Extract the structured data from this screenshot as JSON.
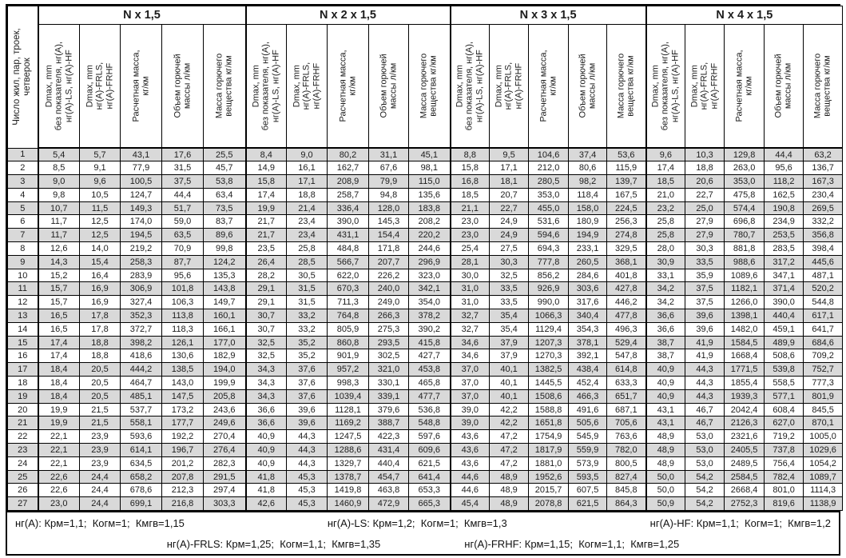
{
  "colors": {
    "row_shade": "#d9d9d9",
    "border": "#000000",
    "background": "#ffffff"
  },
  "table": {
    "corner_header": "Число жил, пар, троек,\nчетверок",
    "groups": [
      "N x 1,5",
      "N x 2 x 1,5",
      "N x 3 x 1,5",
      "N x 4 x 1,5"
    ],
    "column_headers": [
      "Dmax, mm\nбез показателя, нг(A),\nнг(A)-LS, нг(A)-HF",
      "Dmax, mm\nнг(A)-FRLS,\nнг(A)-FRHF",
      "Расчетная масса,\nкг/км",
      "Объем горючей\nмассы л/км",
      "Масса горючего\nвещества кг/км"
    ],
    "rows": [
      {
        "n": "1",
        "values": [
          "5,4",
          "5,7",
          "43,1",
          "17,6",
          "25,5",
          "8,4",
          "9,0",
          "80,2",
          "31,1",
          "45,1",
          "8,8",
          "9,5",
          "104,6",
          "37,4",
          "53,6",
          "9,6",
          "10,3",
          "129,8",
          "44,4",
          "63,2"
        ]
      },
      {
        "n": "2",
        "values": [
          "8,5",
          "9,1",
          "77,9",
          "31,5",
          "45,7",
          "14,9",
          "16,1",
          "162,7",
          "67,6",
          "98,1",
          "15,8",
          "17,1",
          "212,0",
          "80,6",
          "115,9",
          "17,4",
          "18,8",
          "263,0",
          "95,6",
          "136,7"
        ]
      },
      {
        "n": "3",
        "values": [
          "9,0",
          "9,6",
          "100,5",
          "37,5",
          "53,8",
          "15,8",
          "17,1",
          "208,9",
          "79,9",
          "115,0",
          "16,8",
          "18,1",
          "280,5",
          "98,2",
          "139,7",
          "18,5",
          "20,6",
          "353,0",
          "118,2",
          "167,3"
        ]
      },
      {
        "n": "4",
        "values": [
          "9,8",
          "10,5",
          "124,7",
          "44,4",
          "63,4",
          "17,4",
          "18,8",
          "258,7",
          "94,8",
          "135,6",
          "18,5",
          "20,7",
          "353,0",
          "118,4",
          "167,5",
          "21,0",
          "22,7",
          "475,8",
          "162,5",
          "230,4"
        ]
      },
      {
        "n": "5",
        "values": [
          "10,7",
          "11,5",
          "149,3",
          "51,7",
          "73,5",
          "19,9",
          "21,4",
          "336,4",
          "128,0",
          "183,8",
          "21,1",
          "22,7",
          "455,0",
          "158,0",
          "224,5",
          "23,2",
          "25,0",
          "574,4",
          "190,8",
          "269,5"
        ]
      },
      {
        "n": "6",
        "values": [
          "11,7",
          "12,5",
          "174,0",
          "59,0",
          "83,7",
          "21,7",
          "23,4",
          "390,0",
          "145,3",
          "208,2",
          "23,0",
          "24,9",
          "531,6",
          "180,9",
          "256,3",
          "25,8",
          "27,9",
          "696,8",
          "234,9",
          "332,2"
        ]
      },
      {
        "n": "7",
        "values": [
          "11,7",
          "12,5",
          "194,5",
          "63,5",
          "89,6",
          "21,7",
          "23,4",
          "431,1",
          "154,4",
          "220,2",
          "23,0",
          "24,9",
          "594,6",
          "194,9",
          "274,8",
          "25,8",
          "27,9",
          "780,7",
          "253,5",
          "356,8"
        ]
      },
      {
        "n": "8",
        "values": [
          "12,6",
          "14,0",
          "219,2",
          "70,9",
          "99,8",
          "23,5",
          "25,8",
          "484,8",
          "171,8",
          "244,6",
          "25,4",
          "27,5",
          "694,3",
          "233,1",
          "329,5",
          "28,0",
          "30,3",
          "881,8",
          "283,5",
          "398,4"
        ]
      },
      {
        "n": "9",
        "values": [
          "14,3",
          "15,4",
          "258,3",
          "87,7",
          "124,2",
          "26,4",
          "28,5",
          "566,7",
          "207,7",
          "296,9",
          "28,1",
          "30,3",
          "777,8",
          "260,5",
          "368,1",
          "30,9",
          "33,5",
          "988,6",
          "317,2",
          "445,6"
        ]
      },
      {
        "n": "10",
        "values": [
          "15,2",
          "16,4",
          "283,9",
          "95,6",
          "135,3",
          "28,2",
          "30,5",
          "622,0",
          "226,2",
          "323,0",
          "30,0",
          "32,5",
          "856,2",
          "284,6",
          "401,8",
          "33,1",
          "35,9",
          "1089,6",
          "347,1",
          "487,1"
        ]
      },
      {
        "n": "11",
        "values": [
          "15,7",
          "16,9",
          "306,9",
          "101,8",
          "143,8",
          "29,1",
          "31,5",
          "670,3",
          "240,0",
          "342,1",
          "31,0",
          "33,5",
          "926,9",
          "303,6",
          "427,8",
          "34,2",
          "37,5",
          "1182,1",
          "371,4",
          "520,2"
        ]
      },
      {
        "n": "12",
        "values": [
          "15,7",
          "16,9",
          "327,4",
          "106,3",
          "149,7",
          "29,1",
          "31,5",
          "711,3",
          "249,0",
          "354,0",
          "31,0",
          "33,5",
          "990,0",
          "317,6",
          "446,2",
          "34,2",
          "37,5",
          "1266,0",
          "390,0",
          "544,8"
        ]
      },
      {
        "n": "13",
        "values": [
          "16,5",
          "17,8",
          "352,3",
          "113,8",
          "160,1",
          "30,7",
          "33,2",
          "764,8",
          "266,3",
          "378,2",
          "32,7",
          "35,4",
          "1066,3",
          "340,4",
          "477,8",
          "36,6",
          "39,6",
          "1398,1",
          "440,4",
          "617,1"
        ]
      },
      {
        "n": "14",
        "values": [
          "16,5",
          "17,8",
          "372,7",
          "118,3",
          "166,1",
          "30,7",
          "33,2",
          "805,9",
          "275,3",
          "390,2",
          "32,7",
          "35,4",
          "1129,4",
          "354,3",
          "496,3",
          "36,6",
          "39,6",
          "1482,0",
          "459,1",
          "641,7"
        ]
      },
      {
        "n": "15",
        "values": [
          "17,4",
          "18,8",
          "398,2",
          "126,1",
          "177,0",
          "32,5",
          "35,2",
          "860,8",
          "293,5",
          "415,8",
          "34,6",
          "37,9",
          "1207,3",
          "378,1",
          "529,4",
          "38,7",
          "41,9",
          "1584,5",
          "489,9",
          "684,6"
        ]
      },
      {
        "n": "16",
        "values": [
          "17,4",
          "18,8",
          "418,6",
          "130,6",
          "182,9",
          "32,5",
          "35,2",
          "901,9",
          "302,5",
          "427,7",
          "34,6",
          "37,9",
          "1270,3",
          "392,1",
          "547,8",
          "38,7",
          "41,9",
          "1668,4",
          "508,6",
          "709,2"
        ]
      },
      {
        "n": "17",
        "values": [
          "18,4",
          "20,5",
          "444,2",
          "138,5",
          "194,0",
          "34,3",
          "37,6",
          "957,2",
          "321,0",
          "453,8",
          "37,0",
          "40,1",
          "1382,5",
          "438,4",
          "614,8",
          "40,9",
          "44,3",
          "1771,5",
          "539,8",
          "752,7"
        ]
      },
      {
        "n": "18",
        "values": [
          "18,4",
          "20,5",
          "464,7",
          "143,0",
          "199,9",
          "34,3",
          "37,6",
          "998,3",
          "330,1",
          "465,8",
          "37,0",
          "40,1",
          "1445,5",
          "452,4",
          "633,3",
          "40,9",
          "44,3",
          "1855,4",
          "558,5",
          "777,3"
        ]
      },
      {
        "n": "19",
        "values": [
          "18,4",
          "20,5",
          "485,1",
          "147,5",
          "205,8",
          "34,3",
          "37,6",
          "1039,4",
          "339,1",
          "477,7",
          "37,0",
          "40,1",
          "1508,6",
          "466,3",
          "651,7",
          "40,9",
          "44,3",
          "1939,3",
          "577,1",
          "801,9"
        ]
      },
      {
        "n": "20",
        "values": [
          "19,9",
          "21,5",
          "537,7",
          "173,2",
          "243,6",
          "36,6",
          "39,6",
          "1128,1",
          "379,6",
          "536,8",
          "39,0",
          "42,2",
          "1588,8",
          "491,6",
          "687,1",
          "43,1",
          "46,7",
          "2042,4",
          "608,4",
          "845,5"
        ]
      },
      {
        "n": "21",
        "values": [
          "19,9",
          "21,5",
          "558,1",
          "177,7",
          "249,6",
          "36,6",
          "39,6",
          "1169,2",
          "388,7",
          "548,8",
          "39,0",
          "42,2",
          "1651,8",
          "505,6",
          "705,6",
          "43,1",
          "46,7",
          "2126,3",
          "627,0",
          "870,1"
        ]
      },
      {
        "n": "22",
        "values": [
          "22,1",
          "23,9",
          "593,6",
          "192,2",
          "270,4",
          "40,9",
          "44,3",
          "1247,5",
          "422,3",
          "597,6",
          "43,6",
          "47,2",
          "1754,9",
          "545,9",
          "763,6",
          "48,9",
          "53,0",
          "2321,6",
          "719,2",
          "1005,0"
        ]
      },
      {
        "n": "23",
        "values": [
          "22,1",
          "23,9",
          "614,1",
          "196,7",
          "276,4",
          "40,9",
          "44,3",
          "1288,6",
          "431,4",
          "609,6",
          "43,6",
          "47,2",
          "1817,9",
          "559,9",
          "782,0",
          "48,9",
          "53,0",
          "2405,5",
          "737,8",
          "1029,6"
        ]
      },
      {
        "n": "24",
        "values": [
          "22,1",
          "23,9",
          "634,5",
          "201,2",
          "282,3",
          "40,9",
          "44,3",
          "1329,7",
          "440,4",
          "621,5",
          "43,6",
          "47,2",
          "1881,0",
          "573,9",
          "800,5",
          "48,9",
          "53,0",
          "2489,5",
          "756,4",
          "1054,2"
        ]
      },
      {
        "n": "25",
        "values": [
          "22,6",
          "24,4",
          "658,2",
          "207,8",
          "291,5",
          "41,8",
          "45,3",
          "1378,7",
          "454,7",
          "641,4",
          "44,6",
          "48,9",
          "1952,6",
          "593,5",
          "827,4",
          "50,0",
          "54,2",
          "2584,5",
          "782,4",
          "1089,7"
        ]
      },
      {
        "n": "26",
        "values": [
          "22,6",
          "24,4",
          "678,6",
          "212,3",
          "297,4",
          "41,8",
          "45,3",
          "1419,8",
          "463,8",
          "653,3",
          "44,6",
          "48,9",
          "2015,7",
          "607,5",
          "845,8",
          "50,0",
          "54,2",
          "2668,4",
          "801,0",
          "1114,3"
        ]
      },
      {
        "n": "27",
        "values": [
          "23,0",
          "24,4",
          "699,1",
          "216,8",
          "303,3",
          "42,6",
          "45,3",
          "1460,9",
          "472,9",
          "665,3",
          "45,4",
          "48,9",
          "2078,8",
          "621,5",
          "864,3",
          "50,9",
          "54,2",
          "2752,3",
          "819,6",
          "1138,9"
        ]
      }
    ],
    "footnotes": {
      "line1": [
        "нг(A): Крм=1,1;  Когм=1;  Кмгв=1,15",
        "нг(A)-LS: Крм=1,2;  Когм=1;  Кмгв=1,3",
        "нг(A)-HF: Крм=1,1;  Когм=1;  Кмгв=1,2"
      ],
      "line2": [
        "нг(A)-FRLS: Крм=1,25;  Когм=1,1;  Кмгв=1,35",
        "нг(A)-FRHF: Крм=1,15;  Когм=1,1;  Кмгв=1,25"
      ]
    }
  }
}
